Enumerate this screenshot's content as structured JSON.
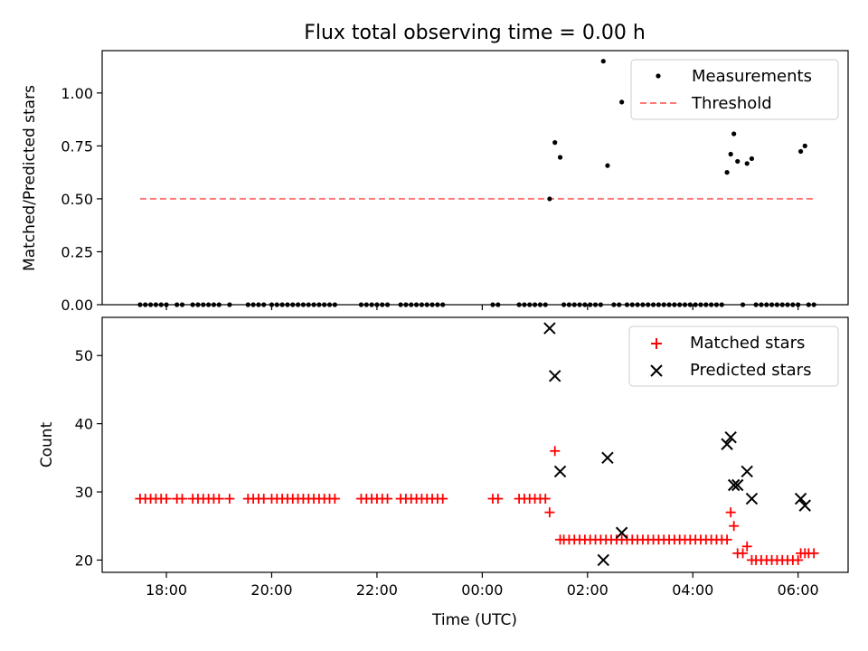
{
  "figure": {
    "title": "Flux total observing time = 0.00 h"
  },
  "chart_data": [
    {
      "type": "scatter",
      "panel": "top",
      "ylabel": "Matched/Predicted stars",
      "xlim": [
        16.78,
        30.95
      ],
      "ylim": [
        0,
        1.2
      ],
      "yticks": [
        "0.00",
        "0.25",
        "0.50",
        "0.75",
        "1.00"
      ],
      "ytick_values": [
        0,
        0.25,
        0.5,
        0.75,
        1.0
      ],
      "grid": false,
      "legend_position": "top-right",
      "series": [
        {
          "name": "Measurements",
          "kind": "points",
          "color": "#000000",
          "points": [
            [
              17.5,
              0
            ],
            [
              17.6,
              0
            ],
            [
              17.7,
              0
            ],
            [
              17.8,
              0
            ],
            [
              17.9,
              0
            ],
            [
              18.0,
              0
            ],
            [
              18.2,
              0
            ],
            [
              18.3,
              0
            ],
            [
              18.5,
              0
            ],
            [
              18.6,
              0
            ],
            [
              18.7,
              0
            ],
            [
              18.8,
              0
            ],
            [
              18.9,
              0
            ],
            [
              19.0,
              0
            ],
            [
              19.2,
              0
            ],
            [
              19.55,
              0
            ],
            [
              19.65,
              0
            ],
            [
              19.75,
              0
            ],
            [
              19.85,
              0
            ],
            [
              20.0,
              0
            ],
            [
              20.1,
              0
            ],
            [
              20.2,
              0
            ],
            [
              20.3,
              0
            ],
            [
              20.4,
              0
            ],
            [
              20.5,
              0
            ],
            [
              20.6,
              0
            ],
            [
              20.7,
              0
            ],
            [
              20.8,
              0
            ],
            [
              20.9,
              0
            ],
            [
              21.0,
              0
            ],
            [
              21.1,
              0
            ],
            [
              21.2,
              0
            ],
            [
              21.7,
              0
            ],
            [
              21.8,
              0
            ],
            [
              21.9,
              0
            ],
            [
              22.0,
              0
            ],
            [
              22.1,
              0
            ],
            [
              22.2,
              0
            ],
            [
              22.45,
              0
            ],
            [
              22.55,
              0
            ],
            [
              22.65,
              0
            ],
            [
              22.75,
              0
            ],
            [
              22.85,
              0
            ],
            [
              22.95,
              0
            ],
            [
              23.05,
              0
            ],
            [
              23.15,
              0
            ],
            [
              23.25,
              0
            ],
            [
              24.2,
              0
            ],
            [
              24.3,
              0
            ],
            [
              24.7,
              0
            ],
            [
              24.8,
              0
            ],
            [
              24.9,
              0
            ],
            [
              25.0,
              0
            ],
            [
              25.1,
              0
            ],
            [
              25.2,
              0
            ],
            [
              25.28,
              0.5
            ],
            [
              25.38,
              0.766
            ],
            [
              25.48,
              0.696
            ],
            [
              25.55,
              0
            ],
            [
              25.65,
              0
            ],
            [
              25.75,
              0
            ],
            [
              25.85,
              0
            ],
            [
              25.95,
              0
            ],
            [
              26.05,
              0
            ],
            [
              26.15,
              0
            ],
            [
              26.25,
              0
            ],
            [
              26.3,
              1.15
            ],
            [
              26.38,
              0.657
            ],
            [
              26.5,
              0
            ],
            [
              26.6,
              0
            ],
            [
              26.65,
              0.957
            ],
            [
              26.75,
              0
            ],
            [
              26.85,
              0
            ],
            [
              26.95,
              0
            ],
            [
              27.05,
              0
            ],
            [
              27.15,
              0
            ],
            [
              27.25,
              0
            ],
            [
              27.35,
              0
            ],
            [
              27.45,
              0
            ],
            [
              27.55,
              0
            ],
            [
              27.65,
              0
            ],
            [
              27.75,
              0
            ],
            [
              27.85,
              0
            ],
            [
              27.95,
              0
            ],
            [
              28.05,
              0
            ],
            [
              28.15,
              0
            ],
            [
              28.25,
              0
            ],
            [
              28.35,
              0
            ],
            [
              28.45,
              0
            ],
            [
              28.55,
              0
            ],
            [
              28.65,
              0.625
            ],
            [
              28.72,
              0.711
            ],
            [
              28.78,
              0.807
            ],
            [
              28.85,
              0.677
            ],
            [
              28.95,
              0
            ],
            [
              29.03,
              0.667
            ],
            [
              29.12,
              0.69
            ],
            [
              29.2,
              0
            ],
            [
              29.3,
              0
            ],
            [
              29.4,
              0
            ],
            [
              29.5,
              0
            ],
            [
              29.6,
              0
            ],
            [
              29.7,
              0
            ],
            [
              29.8,
              0
            ],
            [
              29.9,
              0
            ],
            [
              30.0,
              0
            ],
            [
              30.05,
              0.724
            ],
            [
              30.13,
              0.75
            ],
            [
              30.2,
              0
            ],
            [
              30.3,
              0
            ]
          ]
        },
        {
          "name": "Threshold",
          "kind": "dashed-line",
          "color": "#ff7b7b",
          "x": [
            17.5,
            30.3
          ],
          "y": [
            0.5,
            0.5
          ]
        }
      ]
    },
    {
      "type": "scatter",
      "panel": "bottom",
      "xlabel": "Time (UTC)",
      "ylabel": "Count",
      "xlim": [
        16.78,
        30.95
      ],
      "ylim": [
        18.2,
        55.6
      ],
      "xticks": [
        "18:00",
        "20:00",
        "22:00",
        "00:00",
        "02:00",
        "04:00",
        "06:00"
      ],
      "xtick_values": [
        18,
        20,
        22,
        24,
        26,
        28,
        30
      ],
      "yticks": [
        "20",
        "30",
        "40",
        "50"
      ],
      "ytick_values": [
        20,
        30,
        40,
        50
      ],
      "grid": false,
      "legend_position": "top-right",
      "series": [
        {
          "name": "Matched stars",
          "marker": "plus",
          "color": "#ff0000",
          "points": [
            [
              17.5,
              29
            ],
            [
              17.6,
              29
            ],
            [
              17.7,
              29
            ],
            [
              17.8,
              29
            ],
            [
              17.9,
              29
            ],
            [
              18.0,
              29
            ],
            [
              18.2,
              29
            ],
            [
              18.3,
              29
            ],
            [
              18.5,
              29
            ],
            [
              18.6,
              29
            ],
            [
              18.7,
              29
            ],
            [
              18.8,
              29
            ],
            [
              18.9,
              29
            ],
            [
              19.0,
              29
            ],
            [
              19.2,
              29
            ],
            [
              19.55,
              29
            ],
            [
              19.65,
              29
            ],
            [
              19.75,
              29
            ],
            [
              19.85,
              29
            ],
            [
              20.0,
              29
            ],
            [
              20.1,
              29
            ],
            [
              20.2,
              29
            ],
            [
              20.3,
              29
            ],
            [
              20.4,
              29
            ],
            [
              20.5,
              29
            ],
            [
              20.6,
              29
            ],
            [
              20.7,
              29
            ],
            [
              20.8,
              29
            ],
            [
              20.9,
              29
            ],
            [
              21.0,
              29
            ],
            [
              21.1,
              29
            ],
            [
              21.2,
              29
            ],
            [
              21.7,
              29
            ],
            [
              21.8,
              29
            ],
            [
              21.9,
              29
            ],
            [
              22.0,
              29
            ],
            [
              22.1,
              29
            ],
            [
              22.2,
              29
            ],
            [
              22.45,
              29
            ],
            [
              22.55,
              29
            ],
            [
              22.65,
              29
            ],
            [
              22.75,
              29
            ],
            [
              22.85,
              29
            ],
            [
              22.95,
              29
            ],
            [
              23.05,
              29
            ],
            [
              23.15,
              29
            ],
            [
              23.25,
              29
            ],
            [
              24.2,
              29
            ],
            [
              24.3,
              29
            ],
            [
              24.7,
              29
            ],
            [
              24.8,
              29
            ],
            [
              24.9,
              29
            ],
            [
              25.0,
              29
            ],
            [
              25.1,
              29
            ],
            [
              25.2,
              29
            ],
            [
              25.28,
              27
            ],
            [
              25.38,
              36
            ],
            [
              25.48,
              23
            ],
            [
              25.55,
              23
            ],
            [
              25.65,
              23
            ],
            [
              25.75,
              23
            ],
            [
              25.85,
              23
            ],
            [
              25.95,
              23
            ],
            [
              26.05,
              23
            ],
            [
              26.15,
              23
            ],
            [
              26.25,
              23
            ],
            [
              26.35,
              23
            ],
            [
              26.45,
              23
            ],
            [
              26.55,
              23
            ],
            [
              26.65,
              23
            ],
            [
              26.75,
              23
            ],
            [
              26.85,
              23
            ],
            [
              26.95,
              23
            ],
            [
              27.05,
              23
            ],
            [
              27.15,
              23
            ],
            [
              27.25,
              23
            ],
            [
              27.35,
              23
            ],
            [
              27.45,
              23
            ],
            [
              27.55,
              23
            ],
            [
              27.65,
              23
            ],
            [
              27.75,
              23
            ],
            [
              27.85,
              23
            ],
            [
              27.95,
              23
            ],
            [
              28.05,
              23
            ],
            [
              28.15,
              23
            ],
            [
              28.25,
              23
            ],
            [
              28.35,
              23
            ],
            [
              28.45,
              23
            ],
            [
              28.55,
              23
            ],
            [
              28.65,
              23
            ],
            [
              28.72,
              27
            ],
            [
              28.78,
              25
            ],
            [
              28.85,
              21
            ],
            [
              28.95,
              21
            ],
            [
              29.03,
              22
            ],
            [
              29.12,
              20
            ],
            [
              29.2,
              20
            ],
            [
              29.3,
              20
            ],
            [
              29.4,
              20
            ],
            [
              29.5,
              20
            ],
            [
              29.6,
              20
            ],
            [
              29.7,
              20
            ],
            [
              29.8,
              20
            ],
            [
              29.9,
              20
            ],
            [
              30.0,
              20
            ],
            [
              30.05,
              21
            ],
            [
              30.13,
              21
            ],
            [
              30.2,
              21
            ],
            [
              30.3,
              21
            ]
          ]
        },
        {
          "name": "Predicted stars",
          "marker": "x",
          "color": "#000000",
          "points": [
            [
              25.28,
              54
            ],
            [
              25.38,
              47
            ],
            [
              25.48,
              33
            ],
            [
              26.3,
              20
            ],
            [
              26.38,
              35
            ],
            [
              26.65,
              24
            ],
            [
              28.65,
              37
            ],
            [
              28.72,
              38
            ],
            [
              28.78,
              31
            ],
            [
              28.85,
              31
            ],
            [
              29.03,
              33
            ],
            [
              29.12,
              29
            ],
            [
              30.05,
              29
            ],
            [
              30.13,
              28
            ]
          ]
        }
      ]
    }
  ]
}
